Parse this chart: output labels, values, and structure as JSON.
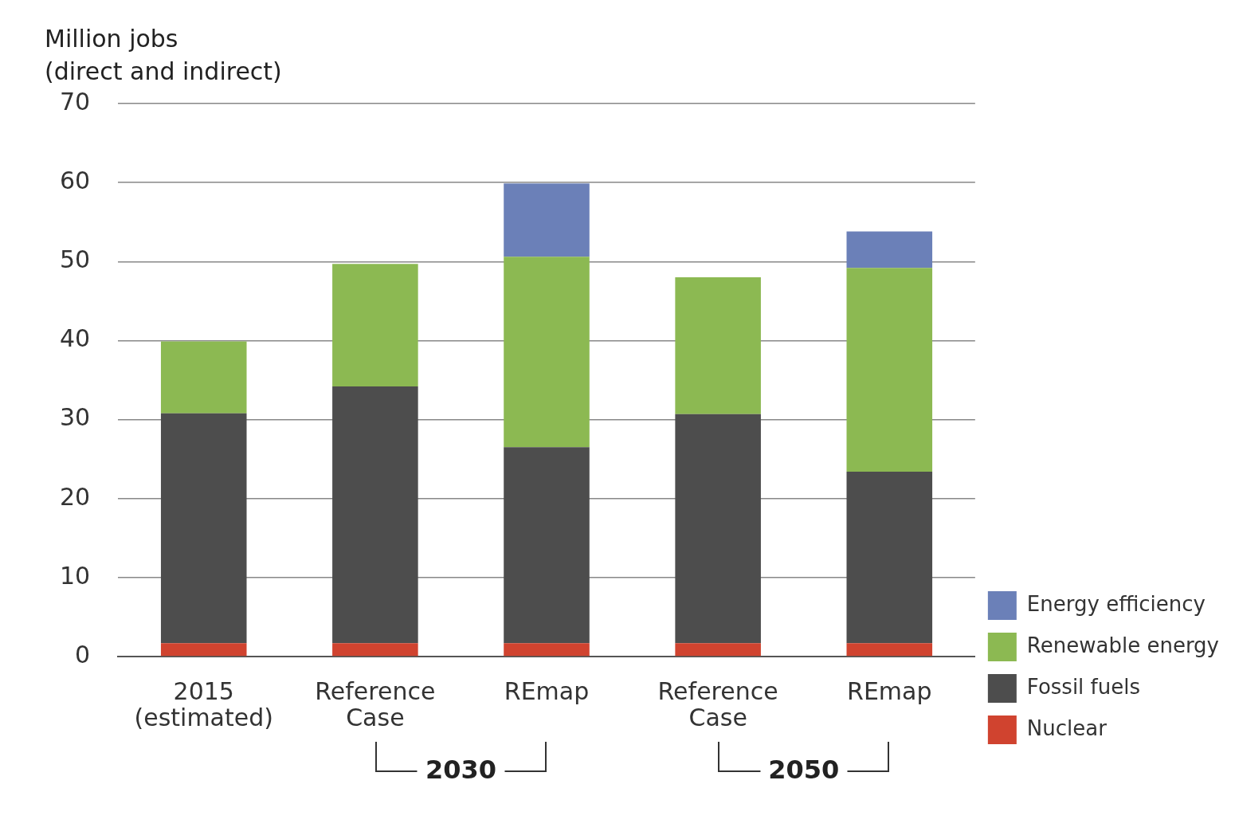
{
  "chart_data": {
    "type": "bar",
    "stacked": true,
    "ylabel": "Million jobs\n(direct and indirect)",
    "categories": [
      "2015 (estimated)",
      "Reference Case",
      "REmap",
      "Reference Case",
      "REmap"
    ],
    "series": [
      {
        "name": "Nuclear",
        "color": "#d0432f",
        "values": [
          1.7,
          1.7,
          1.7,
          1.7,
          1.7
        ]
      },
      {
        "name": "Fossil fuels",
        "color": "#4d4d4d",
        "values": [
          29.1,
          32.5,
          24.8,
          29.0,
          21.7
        ]
      },
      {
        "name": "Renewable energy",
        "color": "#8cb952",
        "values": [
          9.1,
          15.5,
          24.1,
          17.3,
          25.8
        ]
      },
      {
        "name": "Energy efficiency",
        "color": "#6b80b8",
        "values": [
          0,
          0,
          9.3,
          0,
          4.6
        ]
      }
    ],
    "ylim": [
      0,
      70
    ],
    "yticks": [
      0,
      10,
      20,
      30,
      40,
      50,
      60,
      70
    ],
    "grid": "y",
    "legend": "bottom right",
    "annotations": [
      "2030",
      "2050"
    ]
  }
}
